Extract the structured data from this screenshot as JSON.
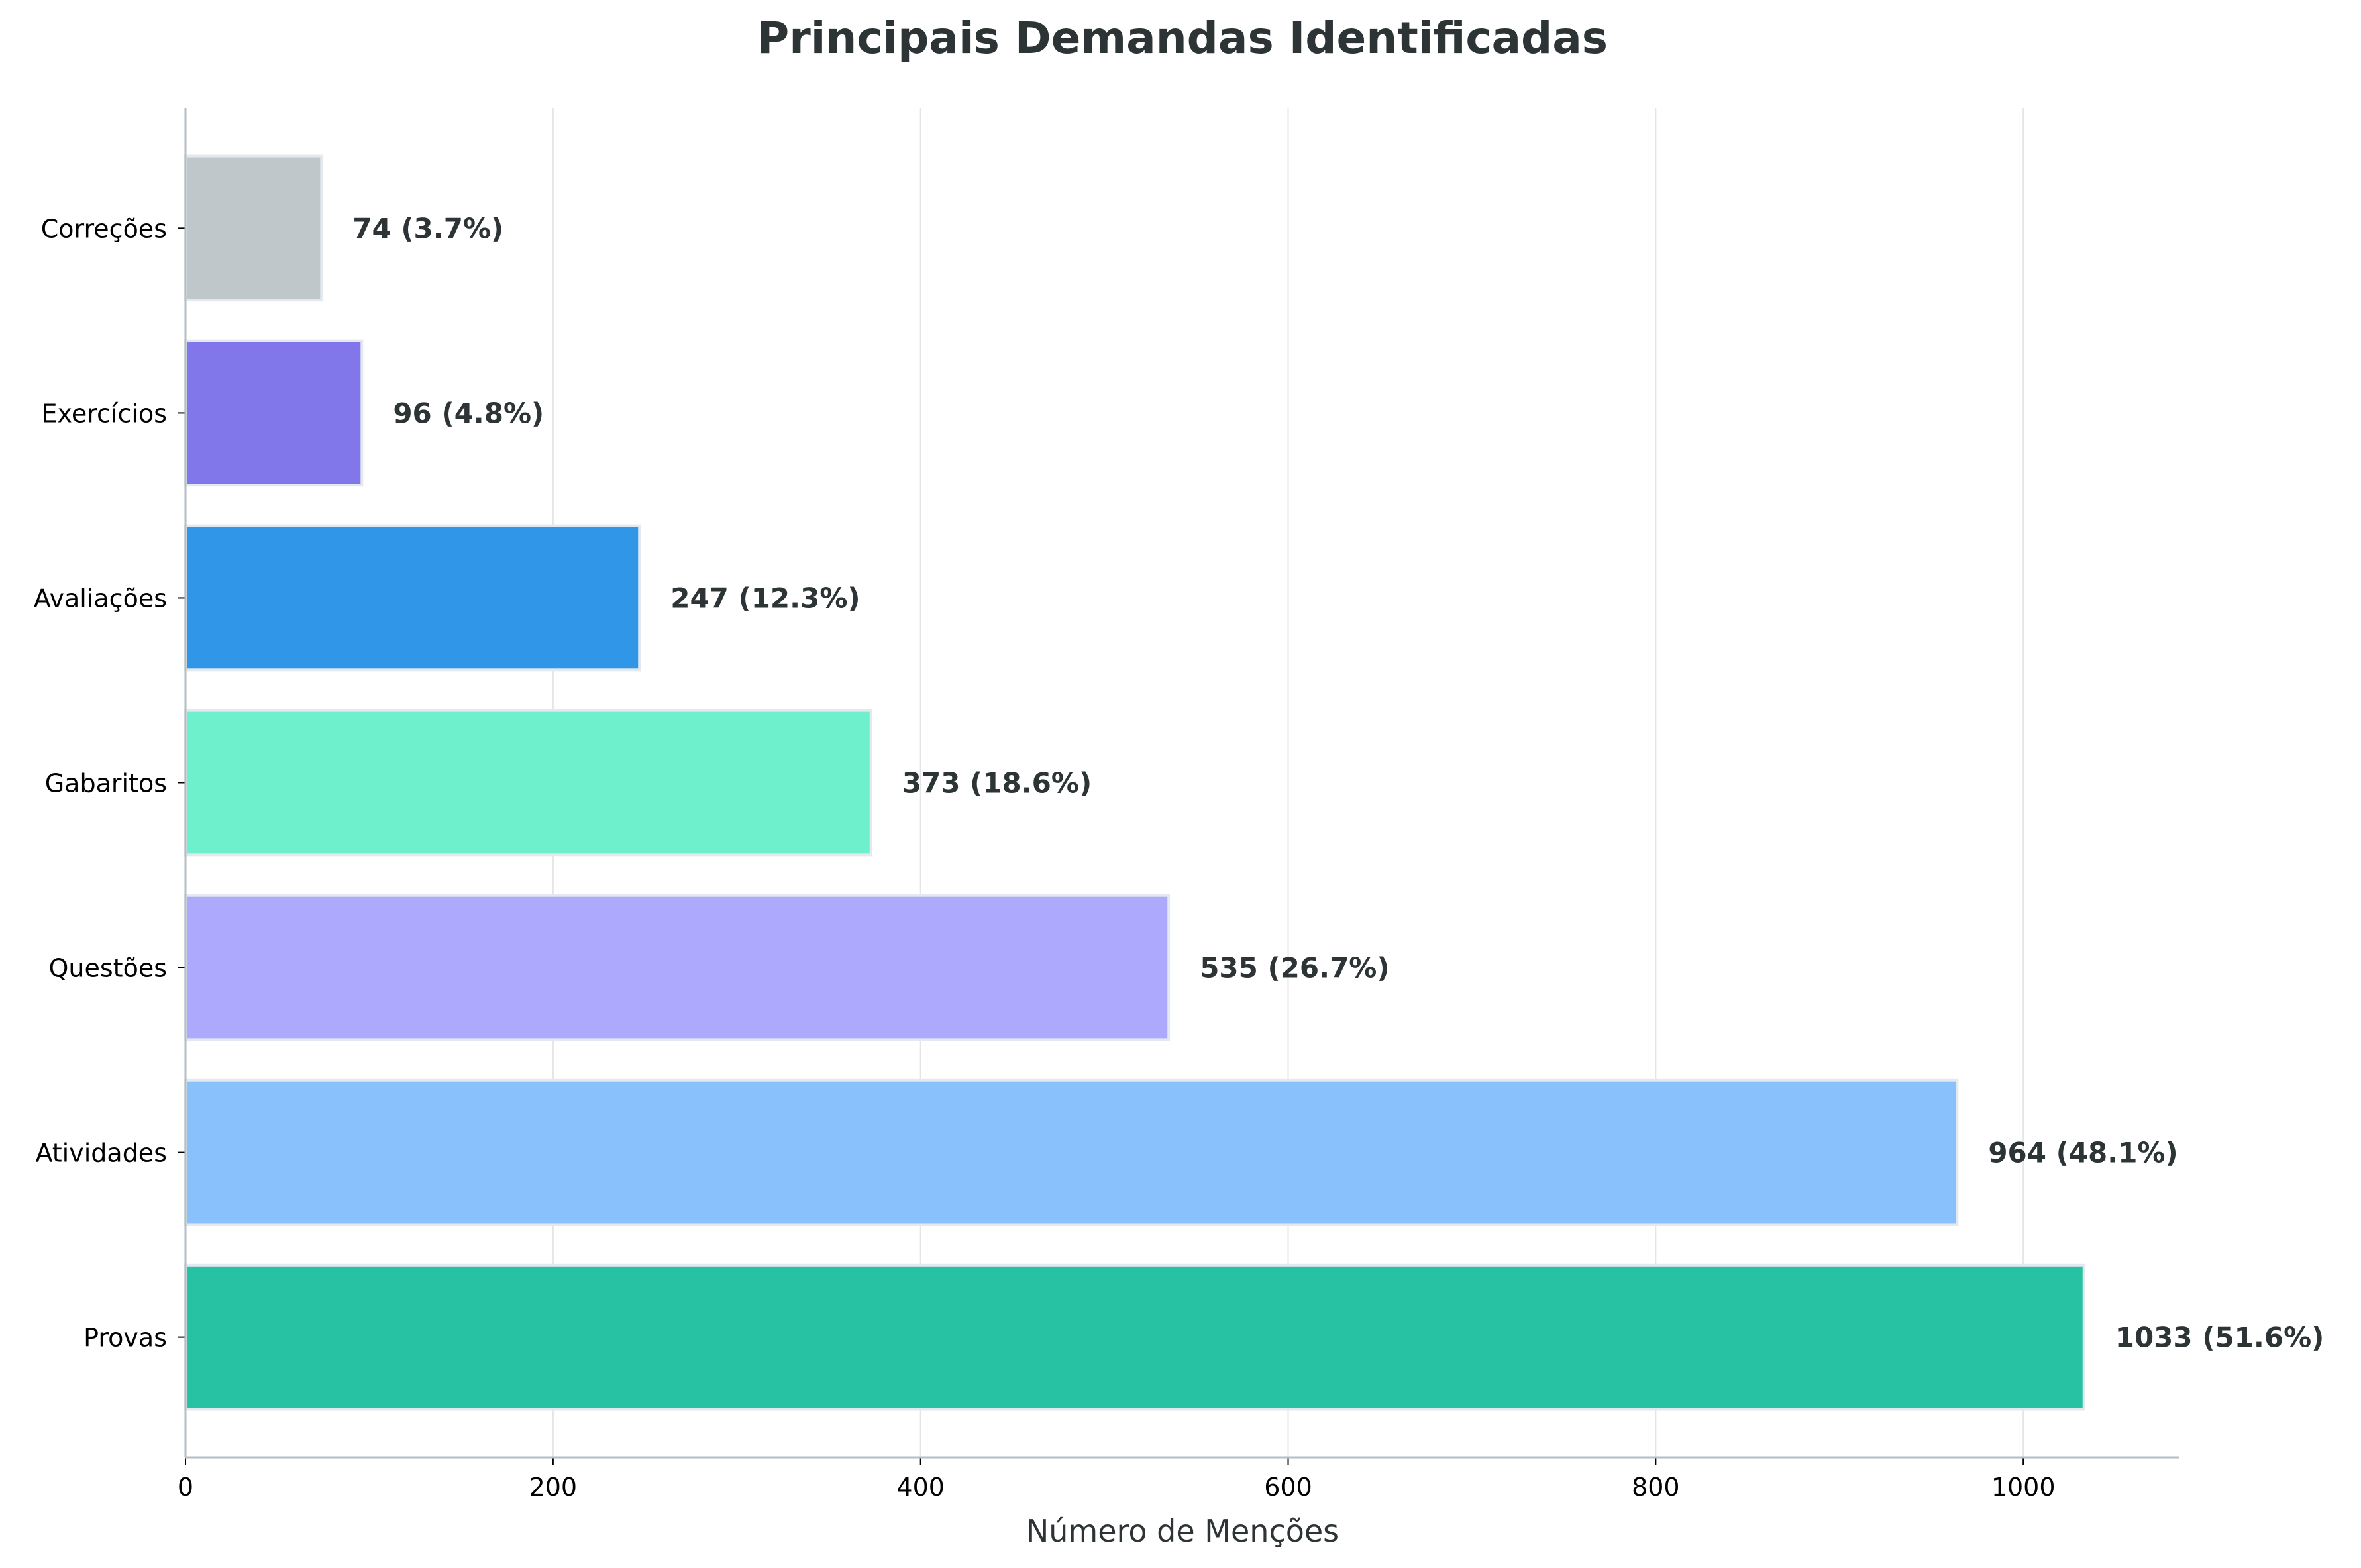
{
  "chart_data": {
    "type": "bar",
    "orientation": "horizontal",
    "title": "Principais Demandas Identificadas",
    "xlabel": "Número de Menções",
    "ylabel": "",
    "xlim": [
      0,
      1085
    ],
    "xticks": [
      0,
      200,
      400,
      600,
      800,
      1000
    ],
    "grid": "vertical",
    "categories": [
      "Provas",
      "Atividades",
      "Questões",
      "Gabaritos",
      "Avaliações",
      "Exercícios",
      "Correções"
    ],
    "values": [
      1033,
      964,
      535,
      373,
      247,
      96,
      74
    ],
    "labels": [
      "1033 (51.6%)",
      "964 (48.1%)",
      "535 (26.7%)",
      "373 (18.6%)",
      "247 (12.3%)",
      "96 (4.8%)",
      "74 (3.7%)"
    ],
    "colors": [
      "#26c2a3",
      "#88c1fc",
      "#adaafd",
      "#6ff0cd",
      "#2f96e8",
      "#8277ea",
      "#c0c7cb"
    ],
    "grid_color": "#e5e5e5",
    "axis_color": "#b2bec3",
    "bar_edge_color": "#e3e9ef"
  }
}
